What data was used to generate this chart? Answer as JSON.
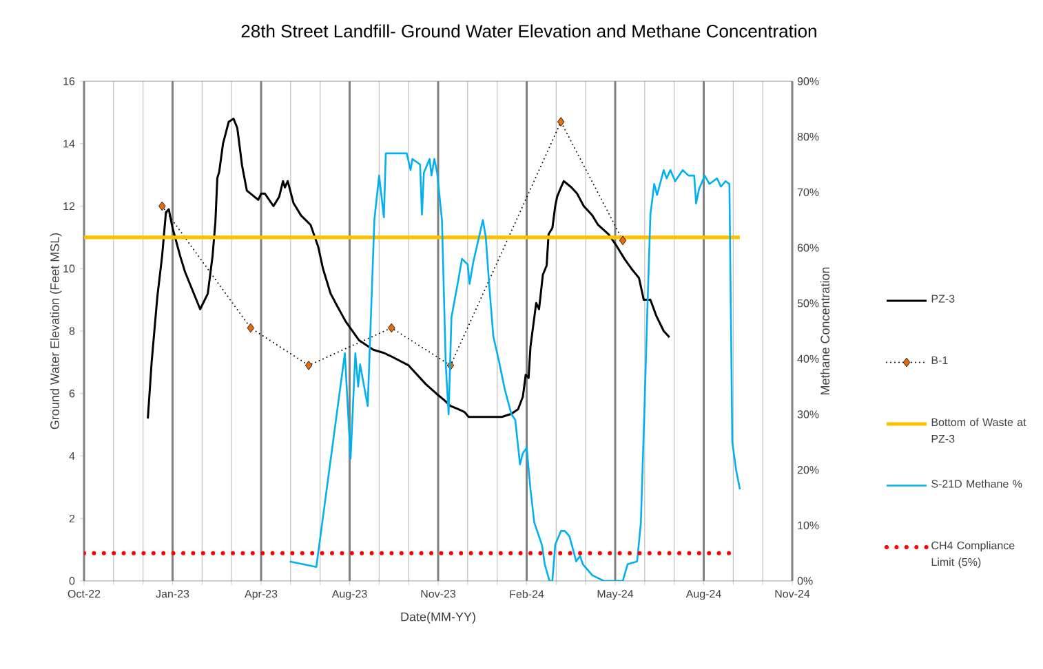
{
  "chart_data": {
    "type": "line",
    "title": "28th Street Landfill- Ground Water Elevation and Methane Concentration",
    "xlabel": "Date(MM-YY)",
    "ylabel": "Ground Water Elevation (Feet MSL)",
    "y2label": "Methane Concentration",
    "xlim": [
      "2022-10-26",
      "2024-11-08"
    ],
    "xticks": [
      {
        "value": "2022-10-26",
        "label": "Oct-22"
      },
      {
        "value": "2023-01-27",
        "label": "Jan-23"
      },
      {
        "value": "2023-04-30",
        "label": "Apr-23"
      },
      {
        "value": "2023-08-01",
        "label": "Aug-23"
      },
      {
        "value": "2023-11-02",
        "label": "Nov-23"
      },
      {
        "value": "2024-02-03",
        "label": "Feb-24"
      },
      {
        "value": "2024-05-06",
        "label": "May-24"
      },
      {
        "value": "2024-08-07",
        "label": "Aug-24"
      },
      {
        "value": "2024-11-08",
        "label": "Nov-24"
      }
    ],
    "ylim": [
      0,
      16
    ],
    "yticks": [
      0,
      2,
      4,
      6,
      8,
      10,
      12,
      14,
      16
    ],
    "y2lim": [
      0,
      90
    ],
    "y2ticks": [
      {
        "value": 0,
        "label": "0%"
      },
      {
        "value": 10,
        "label": "10%"
      },
      {
        "value": 20,
        "label": "20%"
      },
      {
        "value": 30,
        "label": "30%"
      },
      {
        "value": 40,
        "label": "40%"
      },
      {
        "value": 50,
        "label": "50%"
      },
      {
        "value": 60,
        "label": "60%"
      },
      {
        "value": 70,
        "label": "70%"
      },
      {
        "value": 80,
        "label": "80%"
      },
      {
        "value": 90,
        "label": "90%"
      }
    ],
    "grid": "x",
    "legend": "right",
    "series": [
      {
        "name": "PZ-3",
        "color": "#000000",
        "line_style": "solid",
        "marker": "none",
        "x": [
          "2023-01-01",
          "2023-01-05",
          "2023-01-11",
          "2023-01-16",
          "2023-01-20",
          "2023-01-23",
          "2023-01-27",
          "2023-02-04",
          "2023-02-09",
          "2023-02-17",
          "2023-02-25",
          "2023-03-05",
          "2023-03-10",
          "2023-03-13",
          "2023-03-15",
          "2023-03-17",
          "2023-03-21",
          "2023-03-27",
          "2023-04-01",
          "2023-04-05",
          "2023-04-10",
          "2023-04-15",
          "2023-04-23",
          "2023-04-27",
          "2023-04-30",
          "2023-05-04",
          "2023-05-13",
          "2023-05-19",
          "2023-05-23",
          "2023-05-25",
          "2023-05-28",
          "2023-06-03",
          "2023-06-11",
          "2023-06-21",
          "2023-06-29",
          "2023-07-04",
          "2023-07-12",
          "2023-07-19",
          "2023-07-28",
          "2023-08-11",
          "2023-08-26",
          "2023-09-06",
          "2023-09-13",
          "2023-10-02",
          "2023-10-11",
          "2023-10-20",
          "2023-10-31",
          "2023-11-08",
          "2023-11-15",
          "2023-11-23",
          "2023-11-30",
          "2023-12-04",
          "2024-01-08",
          "2024-01-18",
          "2024-01-25",
          "2024-01-30",
          "2024-02-02",
          "2024-02-05",
          "2024-02-07",
          "2024-02-10",
          "2024-02-13",
          "2024-02-16",
          "2024-02-20",
          "2024-02-24",
          "2024-02-26",
          "2024-03-01",
          "2024-03-04",
          "2024-03-06",
          "2024-03-10",
          "2024-03-13",
          "2024-03-21",
          "2024-03-27",
          "2024-04-03",
          "2024-04-12",
          "2024-04-18",
          "2024-04-29",
          "2024-05-08",
          "2024-05-16",
          "2024-05-23",
          "2024-05-31",
          "2024-06-05",
          "2024-06-12",
          "2024-06-18",
          "2024-06-26",
          "2024-07-02"
        ],
        "values": [
          5.2,
          7.0,
          9.1,
          10.4,
          11.8,
          11.9,
          11.3,
          10.4,
          9.9,
          9.3,
          8.7,
          9.2,
          10.4,
          11.5,
          12.9,
          13.1,
          14.0,
          14.7,
          14.8,
          14.5,
          13.3,
          12.5,
          12.3,
          12.2,
          12.4,
          12.4,
          12.0,
          12.3,
          12.8,
          12.6,
          12.8,
          12.1,
          11.7,
          11.4,
          10.7,
          10.0,
          9.2,
          8.8,
          8.3,
          7.7,
          7.4,
          7.3,
          7.2,
          6.9,
          6.6,
          6.3,
          6.0,
          5.8,
          5.6,
          5.5,
          5.4,
          5.25,
          5.25,
          5.35,
          5.5,
          5.9,
          6.6,
          6.5,
          7.5,
          8.2,
          8.9,
          8.7,
          9.8,
          10.1,
          11.1,
          11.3,
          12.0,
          12.3,
          12.6,
          12.8,
          12.6,
          12.4,
          12.0,
          11.7,
          11.4,
          11.1,
          10.7,
          10.3,
          10.0,
          9.7,
          9.0,
          9.0,
          8.5,
          8.0,
          7.8
        ]
      },
      {
        "name": "B-1",
        "color": "#000000",
        "line_style": "dotted",
        "marker": "diamond",
        "x": [
          "2023-01-16",
          "2023-04-19",
          "2023-06-19",
          "2023-09-14",
          "2023-11-15",
          "2024-03-10",
          "2024-05-14"
        ],
        "values": [
          12.0,
          8.1,
          6.9,
          8.1,
          6.9,
          14.7,
          10.9
        ],
        "colors": [
          "#e46c0a",
          "#e46c0a",
          "#e46c0a",
          "#e46c0a",
          "#e46c0a",
          "#e46c0a",
          "#e46c0a"
        ]
      },
      {
        "name": "Bottom of Waste at PZ-3",
        "color": "#ffc000",
        "line_style": "solid",
        "marker": "none",
        "x": [
          "2022-10-26",
          "2024-09-14"
        ],
        "values": [
          11,
          11
        ]
      },
      {
        "name": "S-21D Methane %",
        "color": "#00b0f0",
        "line_style": "solid",
        "marker": "none",
        "axis": "y2",
        "x": [
          "2023-05-30",
          "2023-06-27",
          "2023-07-27",
          "2023-08-02",
          "2023-08-07",
          "2023-08-10",
          "2023-08-12",
          "2023-08-20",
          "2023-08-27",
          "2023-09-01",
          "2023-09-06",
          "2023-09-08",
          "2023-09-21",
          "2023-09-30",
          "2023-10-04",
          "2023-10-06",
          "2023-10-14",
          "2023-10-16",
          "2023-10-18",
          "2023-10-24",
          "2023-10-26",
          "2023-10-29",
          "2023-11-01",
          "2023-11-06",
          "2023-11-10",
          "2023-11-13",
          "2023-11-16",
          "2023-11-23",
          "2023-11-27",
          "2023-12-03",
          "2023-12-05",
          "2023-12-09",
          "2023-12-13",
          "2023-12-19",
          "2023-12-22",
          "2023-12-26",
          "2023-12-30",
          "2024-01-05",
          "2024-01-11",
          "2024-01-18",
          "2024-01-22",
          "2024-01-27",
          "2024-01-30",
          "2024-02-03",
          "2024-02-07",
          "2024-02-11",
          "2024-02-19",
          "2024-02-22",
          "2024-02-27",
          "2024-03-01",
          "2024-03-04",
          "2024-03-10",
          "2024-03-14",
          "2024-03-19",
          "2024-03-23",
          "2024-03-26",
          "2024-03-30",
          "2024-04-02",
          "2024-04-12",
          "2024-04-24",
          "2024-05-14",
          "2024-05-19",
          "2024-05-29",
          "2024-06-02",
          "2024-06-06",
          "2024-06-09",
          "2024-06-12",
          "2024-06-16",
          "2024-06-19",
          "2024-06-26",
          "2024-06-29",
          "2024-07-03",
          "2024-07-08",
          "2024-07-16",
          "2024-07-22",
          "2024-07-28",
          "2024-07-30",
          "2024-08-02",
          "2024-08-08",
          "2024-08-13",
          "2024-08-21",
          "2024-08-25",
          "2024-08-30",
          "2024-09-03",
          "2024-09-06",
          "2024-09-10",
          "2024-09-14"
        ],
        "values": [
          3.5,
          2.5,
          41,
          22,
          41,
          35,
          39,
          31.5,
          65,
          73,
          65.5,
          77,
          77,
          77,
          74,
          76,
          75,
          66,
          73.5,
          76,
          73,
          76,
          73.5,
          65,
          39,
          30,
          47.5,
          54,
          58,
          57,
          53.5,
          57.5,
          60.5,
          65,
          62,
          52.5,
          44,
          39.5,
          34.5,
          30,
          29,
          21,
          23,
          24,
          16.5,
          10.5,
          6.5,
          3,
          0,
          0,
          6.5,
          9,
          9,
          8,
          5.5,
          3.5,
          4.5,
          3,
          1,
          0,
          0,
          3,
          3.5,
          10.5,
          32.5,
          50,
          66,
          71.5,
          69.5,
          74,
          72.5,
          74,
          72,
          74,
          73,
          73,
          68,
          70.5,
          73,
          71.5,
          72.5,
          71,
          72,
          71.5,
          25,
          20,
          16.5
        ]
      },
      {
        "name": "CH4 Compliance Limit (5%)",
        "color": "#ff0000",
        "line_style": "dotted",
        "marker": "none",
        "axis": "y2",
        "x": [
          "2022-10-26",
          "2024-09-06"
        ],
        "values": [
          5,
          5
        ]
      }
    ]
  }
}
